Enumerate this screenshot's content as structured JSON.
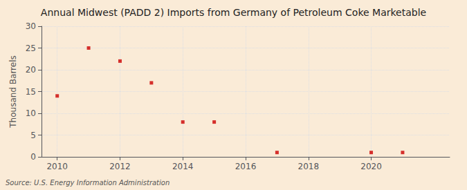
{
  "chart_data": {
    "type": "scatter",
    "title": "Annual Midwest (PADD 2) Imports from Germany of Petroleum Coke Marketable",
    "ylabel": "Thousand Barrels",
    "source": "Source: U.S. Energy Information Administration",
    "x": [
      2010,
      2011,
      2012,
      2013,
      2014,
      2015,
      2017,
      2020,
      2021
    ],
    "values": [
      14,
      25,
      22,
      17,
      8,
      8,
      1,
      1,
      1
    ],
    "color": "#cc0000",
    "marker": "square",
    "xlim": [
      2009.5,
      2022.5
    ],
    "ylim": [
      0,
      30
    ],
    "xticks": [
      2010,
      2012,
      2014,
      2016,
      2018,
      2020
    ],
    "yticks": [
      0,
      5,
      10,
      15,
      20,
      25,
      30
    ],
    "grid": true
  }
}
